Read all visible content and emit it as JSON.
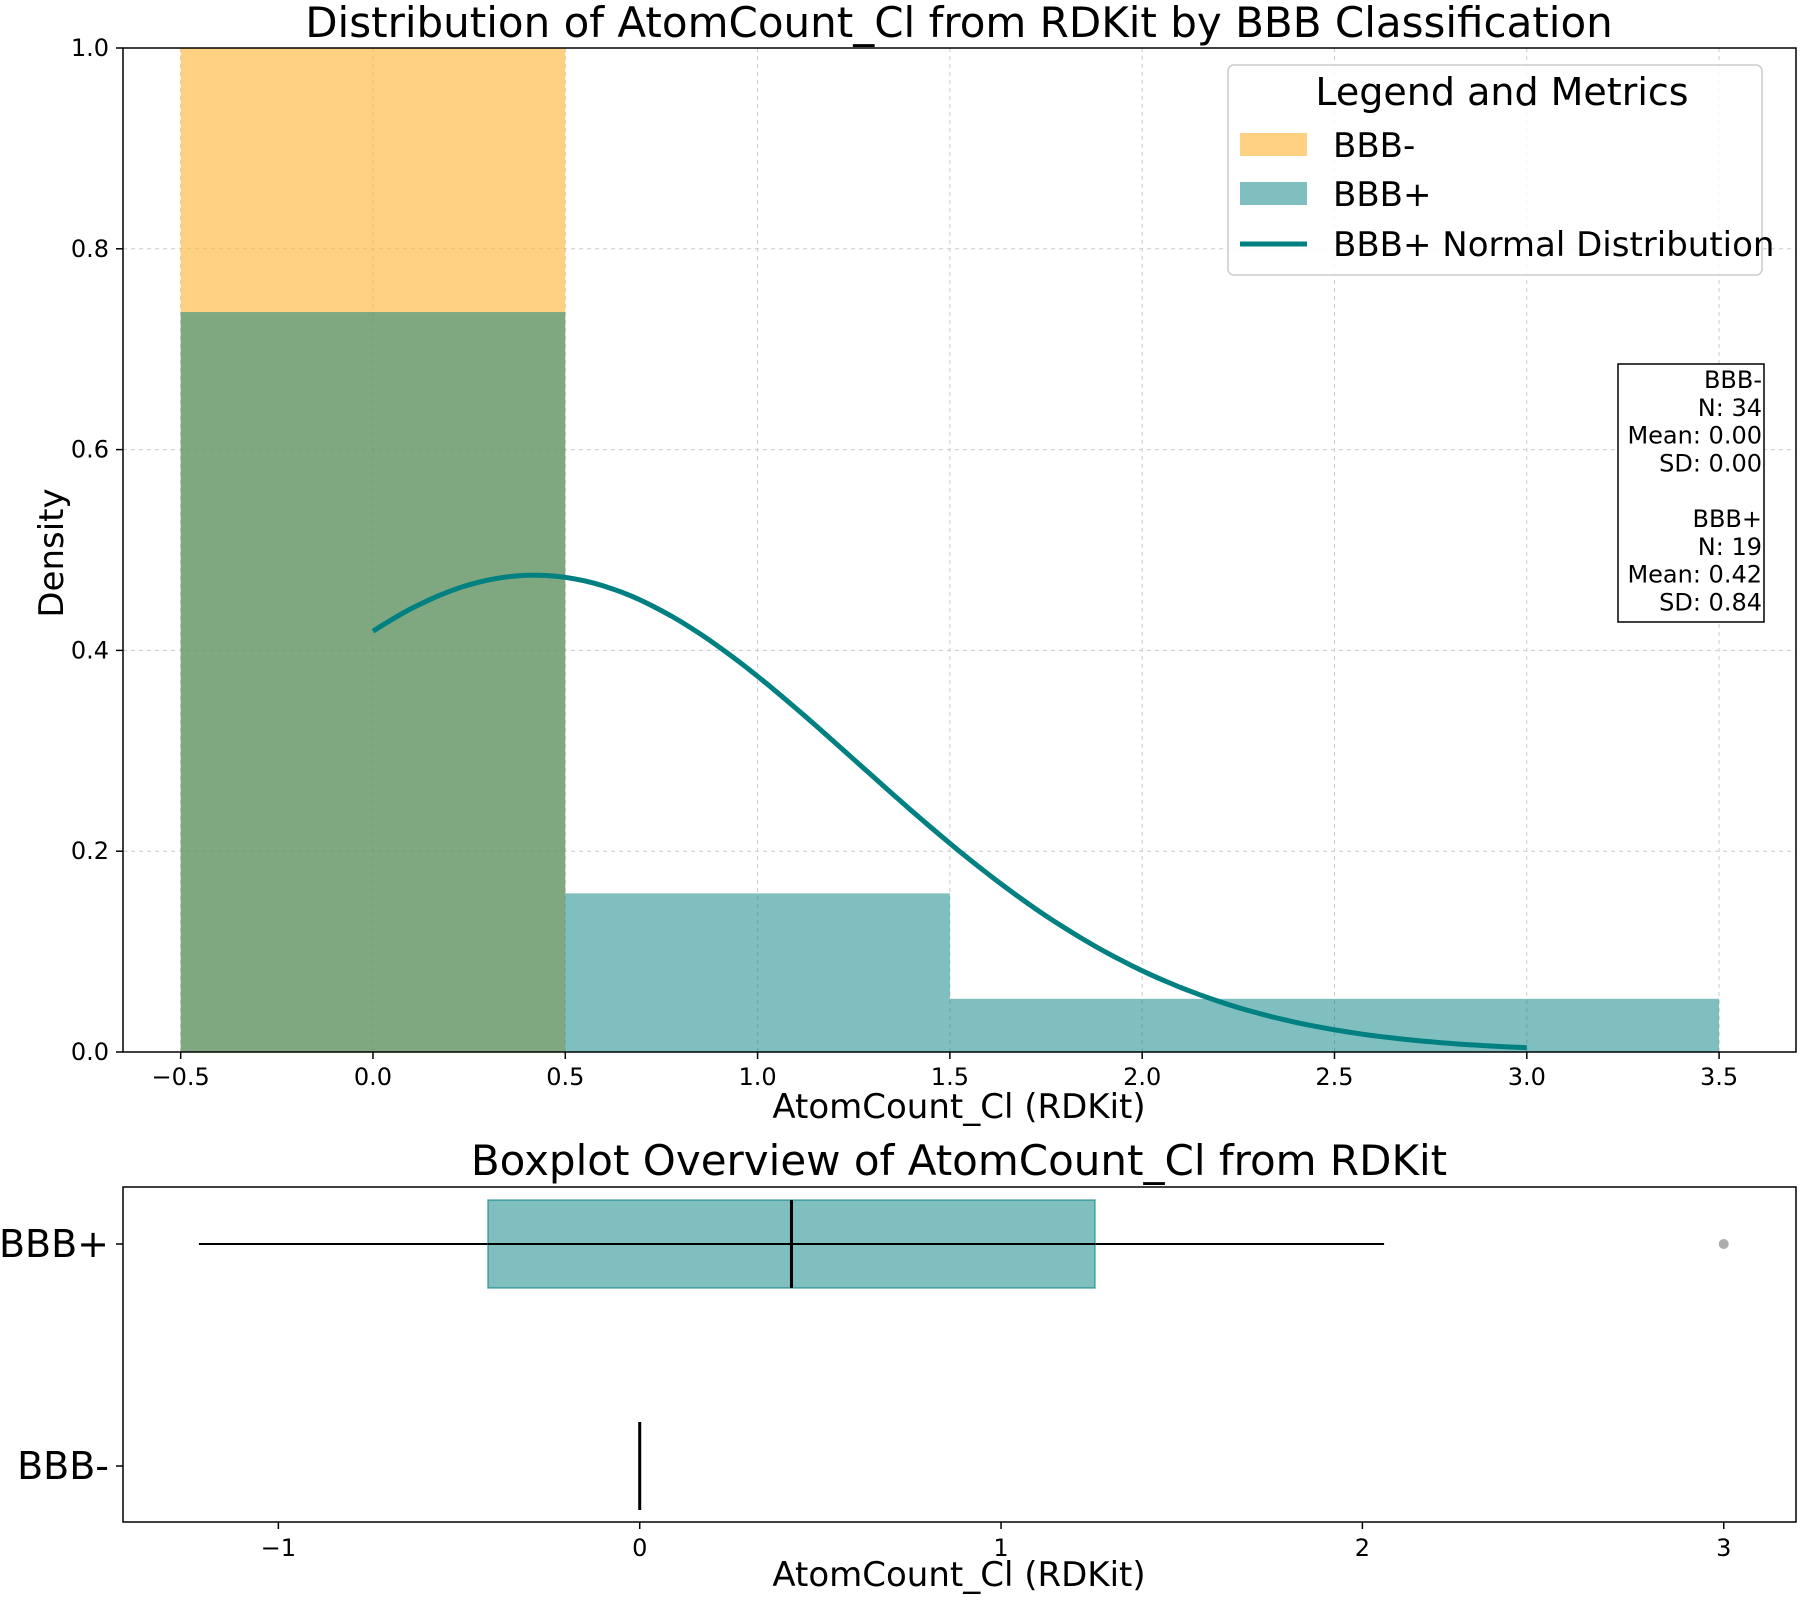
{
  "chart_data": [
    {
      "type": "histogram",
      "title": "Distribution of AtomCount_Cl from RDKit by BBB Classification",
      "xlabel": "AtomCount_Cl (RDKit)",
      "ylabel": "Density",
      "xlim": [
        -0.65,
        3.7
      ],
      "ylim": [
        0,
        1.0
      ],
      "xticks": [
        -0.5,
        0.0,
        0.5,
        1.0,
        1.5,
        2.0,
        2.5,
        3.0,
        3.5
      ],
      "xtick_labels": [
        "−0.5",
        "0.0",
        "0.5",
        "1.0",
        "1.5",
        "2.0",
        "2.5",
        "3.0",
        "3.5"
      ],
      "yticks": [
        0.0,
        0.2,
        0.4,
        0.6,
        0.8,
        1.0
      ],
      "ytick_labels": [
        "0.0",
        "0.2",
        "0.4",
        "0.6",
        "0.8",
        "1.0"
      ],
      "grid": true,
      "series": [
        {
          "name": "BBB-",
          "color": "#fdb73e",
          "opacity": 0.65,
          "bins": [
            {
              "x0": -0.5,
              "x1": 0.5,
              "density": 1.0
            }
          ]
        },
        {
          "name": "BBB+",
          "color": "#008080",
          "opacity": 0.5,
          "bins": [
            {
              "x0": -0.5,
              "x1": 0.5,
              "density": 0.737
            },
            {
              "x0": 0.5,
              "x1": 1.5,
              "density": 0.158
            },
            {
              "x0": 1.5,
              "x1": 3.5,
              "density": 0.053
            }
          ]
        }
      ],
      "normal_curve": {
        "name": "BBB+ Normal Distribution",
        "color": "#008080",
        "mean": 0.42,
        "sd": 0.84,
        "x_range": [
          0,
          3
        ]
      },
      "legend": {
        "title": "Legend and Metrics",
        "placement": "top-right",
        "entries": [
          {
            "label": "BBB-",
            "kind": "patch",
            "color": "#fdb73e"
          },
          {
            "label": "BBB+",
            "kind": "patch",
            "color": "#008080"
          },
          {
            "label": "BBB+ Normal Distribution",
            "kind": "line",
            "color": "#008080"
          }
        ]
      },
      "stats_box": {
        "placement": "right",
        "lines": [
          "BBB-",
          "N: 34",
          "Mean: 0.00",
          "SD: 0.00",
          "",
          "BBB+",
          "N: 19",
          "Mean: 0.42",
          "SD: 0.84"
        ]
      }
    },
    {
      "type": "boxplot",
      "title": "Boxplot Overview of AtomCount_Cl from RDKit",
      "xlabel": "AtomCount_Cl (RDKit)",
      "xlim": [
        -1.43,
        3.2
      ],
      "xticks": [
        -1,
        0,
        1,
        2,
        3
      ],
      "xtick_labels": [
        "−1",
        "0",
        "1",
        "2",
        "3"
      ],
      "categories": [
        "BBB+",
        "BBB-"
      ],
      "boxes": [
        {
          "category": "BBB+",
          "whisker_low": -1.22,
          "q1": -0.42,
          "median": 0.42,
          "q3": 1.26,
          "whisker_high": 2.06,
          "outliers": [
            3
          ],
          "color": "#008080"
        },
        {
          "category": "BBB-",
          "whisker_low": 0,
          "q1": 0,
          "median": 0,
          "q3": 0,
          "whisker_high": 0,
          "outliers": [],
          "color": "#fdb73e"
        }
      ]
    }
  ]
}
